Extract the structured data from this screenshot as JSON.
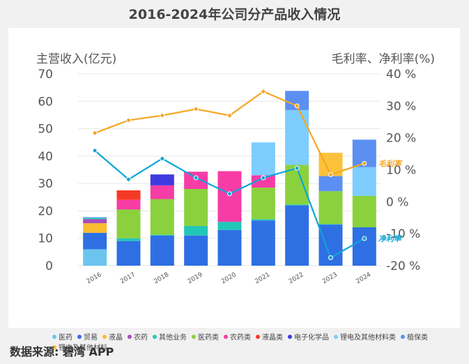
{
  "title": "2016-2024年公司分产品收入情况",
  "source": "数据来源: 碧湾 APP",
  "chart_data": {
    "type": "bar",
    "stacked": true,
    "categories": [
      "2016",
      "2017",
      "2018",
      "2019",
      "2020",
      "2021",
      "2022",
      "2023",
      "2024"
    ],
    "left_axis": {
      "label": "主营收入(亿元)",
      "ylim": [
        0,
        70
      ],
      "ticks": [
        "0",
        "10",
        "20",
        "30",
        "40",
        "50",
        "60",
        "70"
      ]
    },
    "right_axis": {
      "label": "毛利率、净利率(%)",
      "ylim": [
        -20,
        40
      ],
      "ticks": [
        "-20 %",
        "-10 %",
        "0 %",
        "10 %",
        "20 %",
        "30 %",
        "40 %"
      ]
    },
    "bar_series": [
      {
        "name": "医药",
        "color": "#6cc5f0",
        "values": [
          6,
          0,
          0,
          0,
          0,
          0,
          0,
          0,
          0
        ]
      },
      {
        "name": "贸易",
        "color": "#2f6fe4",
        "values": [
          6,
          9,
          11,
          11,
          13,
          16.5,
          22,
          15,
          14
        ]
      },
      {
        "name": "液晶",
        "color": "#f9bb30",
        "values": [
          3.5,
          0,
          0,
          0,
          0,
          0,
          0,
          0,
          0
        ]
      },
      {
        "name": "农药",
        "color": "#a54cbc",
        "values": [
          1.5,
          0,
          0,
          0,
          0,
          0,
          0,
          0,
          0
        ]
      },
      {
        "name": "其他业务",
        "color": "#22c7b8",
        "values": [
          0.5,
          1,
          0.3,
          3.5,
          3,
          0.5,
          0.3,
          0.2,
          0
        ]
      },
      {
        "name": "医药类",
        "color": "#8bd13e",
        "values": [
          0,
          10.5,
          13,
          13.5,
          0,
          11.5,
          14.5,
          12,
          11.5
        ]
      },
      {
        "name": "农药类",
        "color": "#f73ca6",
        "values": [
          0,
          3.5,
          5,
          6.3,
          18.5,
          4.5,
          0,
          0,
          0
        ]
      },
      {
        "name": "液晶类",
        "color": "#f73a26",
        "values": [
          0,
          3.5,
          0,
          0,
          0,
          0,
          0,
          0,
          0
        ]
      },
      {
        "name": "电子化学品",
        "color": "#3f3ae0",
        "values": [
          0,
          0,
          4,
          0,
          0,
          0,
          0,
          0,
          0
        ]
      },
      {
        "name": "锂电及其他材料类",
        "color": "#7dcdff",
        "values": [
          0,
          0,
          0,
          0,
          0,
          12,
          20,
          0,
          10.5
        ]
      },
      {
        "name": "植保类",
        "color": "#5b8ff2",
        "values": [
          0.2,
          0,
          0,
          0,
          0,
          0,
          7,
          5.5,
          10
        ]
      },
      {
        "name": "锂电及其他材料",
        "color": "#fbc13a",
        "values": [
          0,
          0,
          0,
          0,
          0,
          0,
          0,
          8.5,
          0
        ]
      }
    ],
    "line_series": [
      {
        "name": "毛利率",
        "color": "#f5a623",
        "values": [
          21.5,
          25.5,
          27,
          29,
          27,
          34.5,
          30,
          8.5,
          12
        ]
      },
      {
        "name": "净利率",
        "color": "#0ea5d4",
        "values": [
          16,
          7,
          13.5,
          7.5,
          2.5,
          7.5,
          10.5,
          -17.5,
          -11.5
        ]
      }
    ]
  },
  "legend_items": [
    "医药",
    "贸易",
    "液晶",
    "农药",
    "其他业务",
    "医药类",
    "农药类",
    "液晶类",
    "电子化学品",
    "锂电及其他材料类",
    "植保类",
    "锂电及其他材料"
  ]
}
